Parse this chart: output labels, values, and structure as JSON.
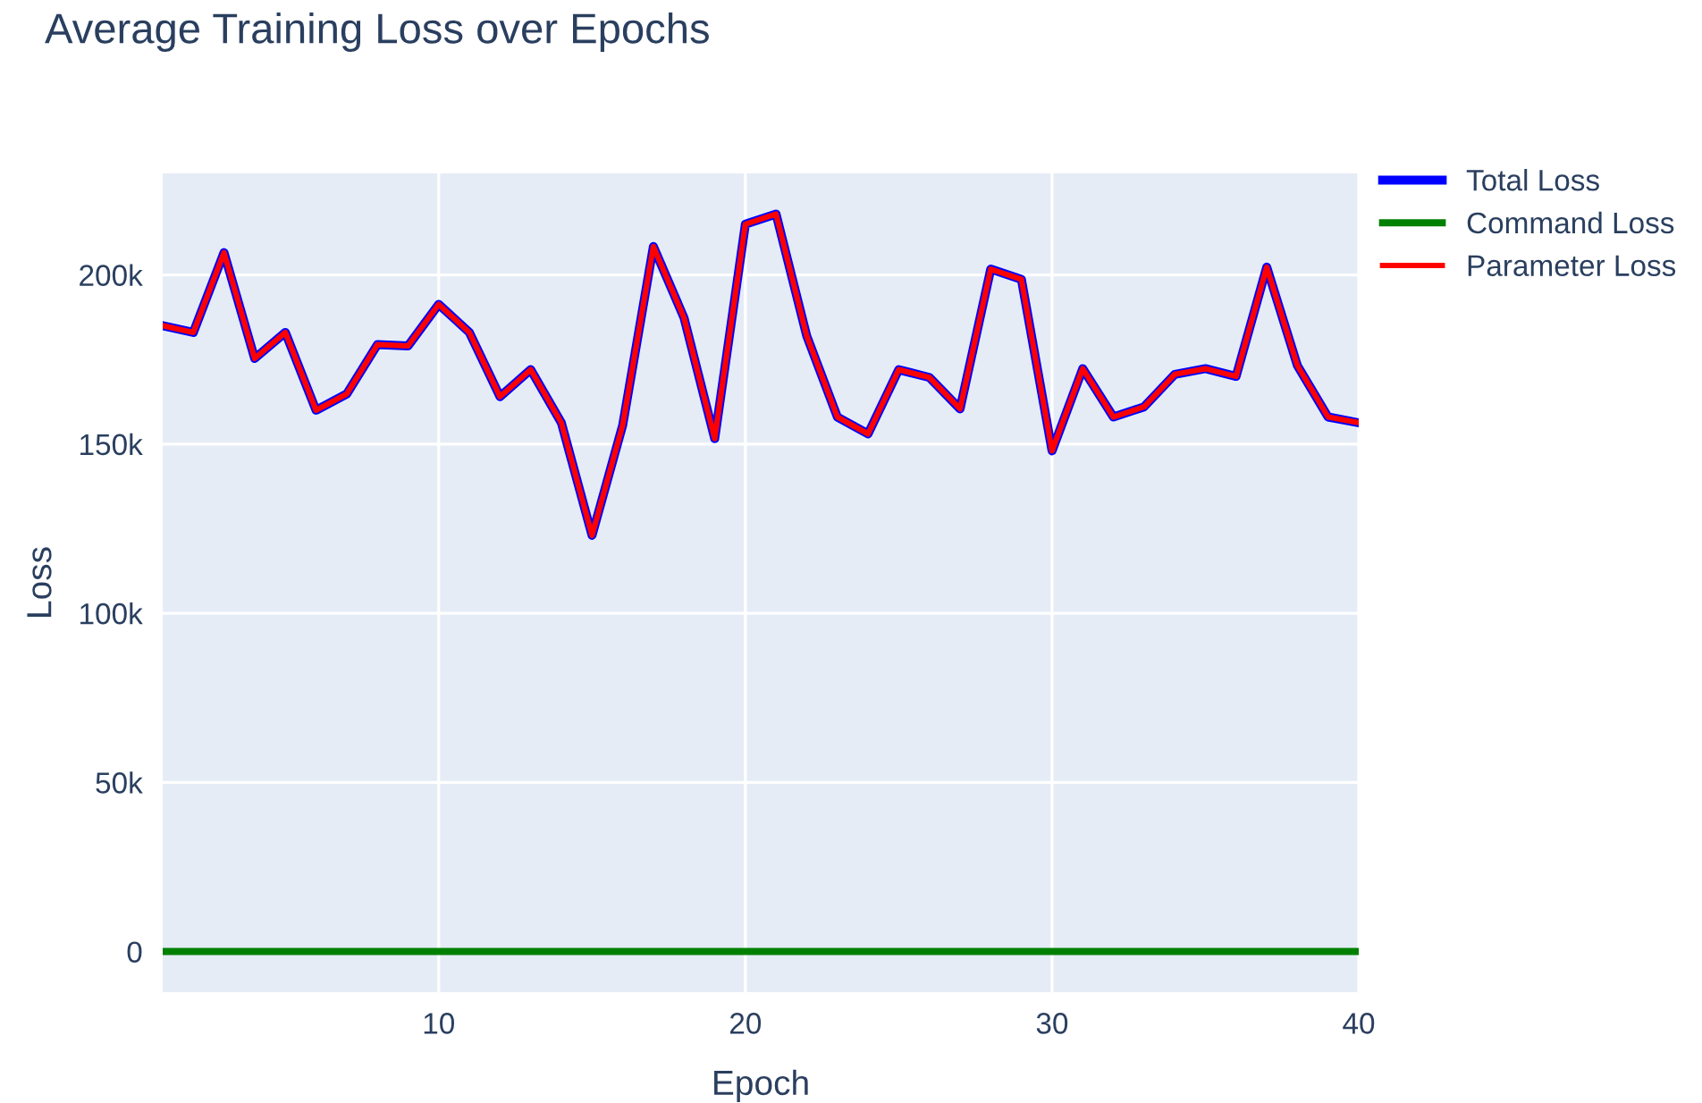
{
  "chart_data": {
    "type": "line",
    "title": "Average Training Loss over Epochs",
    "xlabel": "Epoch",
    "ylabel": "Loss",
    "x": [
      1,
      2,
      3,
      4,
      5,
      6,
      7,
      8,
      9,
      10,
      11,
      12,
      13,
      14,
      15,
      16,
      17,
      18,
      19,
      20,
      21,
      22,
      23,
      24,
      25,
      26,
      27,
      28,
      29,
      30,
      31,
      32,
      33,
      34,
      35,
      36,
      37,
      38,
      39,
      40
    ],
    "series": [
      {
        "name": "Total Loss",
        "color": "#0000ff",
        "values": [
          185000,
          183000,
          206600,
          175300,
          183000,
          160000,
          164800,
          179400,
          179000,
          191300,
          183000,
          164000,
          172000,
          156300,
          123000,
          155600,
          208400,
          187300,
          151600,
          215000,
          218000,
          182000,
          158000,
          153000,
          172000,
          169700,
          160400,
          201700,
          198700,
          148000,
          172300,
          158000,
          161000,
          170600,
          172300,
          170000,
          202300,
          173200,
          158000,
          156300
        ]
      },
      {
        "name": "Command Loss",
        "color": "#008000",
        "values": [
          0,
          0,
          0,
          0,
          0,
          0,
          0,
          0,
          0,
          0,
          0,
          0,
          0,
          0,
          0,
          0,
          0,
          0,
          0,
          0,
          0,
          0,
          0,
          0,
          0,
          0,
          0,
          0,
          0,
          0,
          0,
          0,
          0,
          0,
          0,
          0,
          0,
          0,
          0,
          0
        ]
      },
      {
        "name": "Parameter Loss",
        "color": "#ff0000",
        "values": [
          185000,
          183000,
          206600,
          175300,
          183000,
          160000,
          164800,
          179400,
          179000,
          191300,
          183000,
          164000,
          172000,
          156300,
          123000,
          155600,
          208400,
          187300,
          151600,
          215000,
          218000,
          182000,
          158000,
          153000,
          172000,
          169700,
          160400,
          201700,
          198700,
          148000,
          172300,
          158000,
          161000,
          170600,
          172300,
          170000,
          202300,
          173200,
          158000,
          156300
        ]
      }
    ],
    "xlim": [
      1,
      40
    ],
    "ylim": [
      -12000,
      230000
    ],
    "xticks": [
      10,
      20,
      30,
      40
    ],
    "yticks": [
      {
        "value": 0,
        "label": "0"
      },
      {
        "value": 50000,
        "label": "50k"
      },
      {
        "value": 100000,
        "label": "100k"
      },
      {
        "value": 150000,
        "label": "150k"
      },
      {
        "value": 200000,
        "label": "200k"
      }
    ],
    "grid": true,
    "legend": "top right",
    "marker": "none",
    "line_style": "solid"
  }
}
